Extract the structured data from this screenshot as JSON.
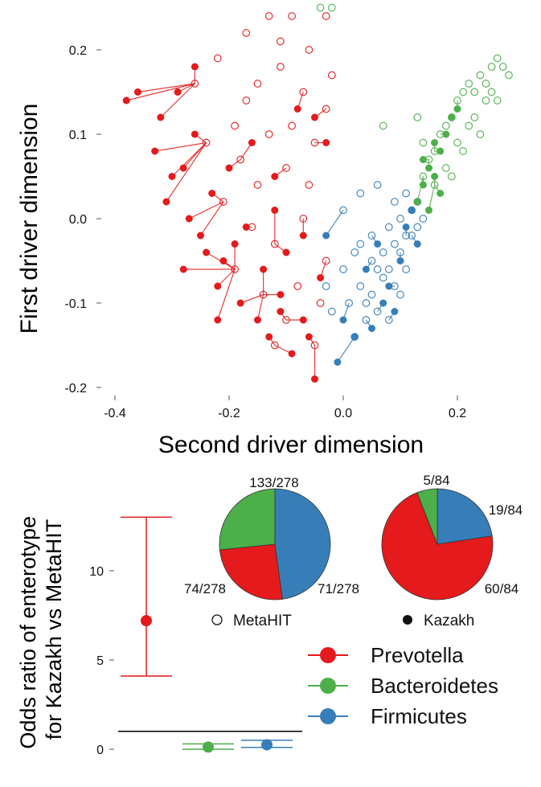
{
  "colors": {
    "prevotella": "#e41a1c",
    "bacteroidetes": "#4daf4a",
    "firmicutes": "#377eb8",
    "reference_line": "#000000"
  },
  "chart_data": [
    {
      "type": "scatter",
      "xlabel": "Second driver dimension",
      "ylabel": "First driver dimension",
      "xlim": [
        -0.4,
        0.3
      ],
      "ylim": [
        -0.2,
        0.25
      ],
      "x_ticks": [
        "-0.4",
        "-0.2",
        "0.0",
        "0.2"
      ],
      "y_ticks": [
        "0.2",
        "0.1",
        "0.0",
        "-0.1",
        "-0.2"
      ],
      "grid": false,
      "marker_styles": {
        "open_circle": "MetaHIT",
        "filled_circle": "Kazakh"
      },
      "series": [
        {
          "group": "Prevotella",
          "color": "#e41a1c",
          "kazakh_points": [
            [
              -0.38,
              0.14
            ],
            [
              -0.36,
              0.15
            ],
            [
              -0.32,
              0.12
            ],
            [
              -0.29,
              0.15
            ],
            [
              -0.26,
              0.18
            ],
            [
              -0.33,
              0.08
            ],
            [
              -0.3,
              0.05
            ],
            [
              -0.28,
              0.06
            ],
            [
              -0.31,
              0.02
            ],
            [
              -0.27,
              0.0
            ],
            [
              -0.25,
              -0.02
            ],
            [
              -0.23,
              0.03
            ],
            [
              -0.21,
              -0.05
            ],
            [
              -0.19,
              -0.03
            ],
            [
              -0.22,
              -0.08
            ],
            [
              -0.18,
              -0.1
            ],
            [
              -0.15,
              -0.12
            ],
            [
              -0.13,
              -0.14
            ],
            [
              -0.11,
              -0.09
            ],
            [
              -0.09,
              -0.16
            ],
            [
              -0.07,
              -0.12
            ],
            [
              -0.05,
              -0.19
            ],
            [
              -0.08,
              0.13
            ],
            [
              -0.05,
              0.12
            ],
            [
              -0.12,
              0.01
            ],
            [
              -0.1,
              -0.04
            ],
            [
              -0.14,
              -0.06
            ],
            [
              -0.24,
              -0.04
            ],
            [
              -0.2,
              0.06
            ],
            [
              -0.16,
              0.09
            ],
            [
              -0.07,
              -0.02
            ],
            [
              -0.04,
              -0.07
            ],
            [
              -0.06,
              -0.14
            ],
            [
              -0.26,
              0.1
            ],
            [
              -0.17,
              -0.01
            ],
            [
              -0.11,
              -0.11
            ],
            [
              -0.28,
              -0.06
            ],
            [
              -0.22,
              -0.12
            ],
            [
              -0.03,
              0.09
            ],
            [
              -0.12,
              0.05
            ]
          ],
          "metahit_points": [
            [
              -0.17,
              0.22
            ],
            [
              -0.13,
              0.24
            ],
            [
              -0.09,
              0.24
            ],
            [
              -0.03,
              0.24
            ],
            [
              -0.06,
              0.2
            ],
            [
              -0.15,
              0.16
            ],
            [
              -0.11,
              0.18
            ],
            [
              -0.07,
              0.15
            ],
            [
              -0.03,
              0.13
            ],
            [
              -0.22,
              0.19
            ],
            [
              -0.26,
              0.16
            ],
            [
              -0.19,
              0.11
            ],
            [
              -0.13,
              0.1
            ],
            [
              -0.09,
              0.11
            ],
            [
              -0.05,
              0.09
            ],
            [
              -0.24,
              0.09
            ],
            [
              -0.18,
              0.07
            ],
            [
              -0.15,
              0.04
            ],
            [
              -0.1,
              0.06
            ],
            [
              -0.06,
              0.04
            ],
            [
              -0.21,
              0.02
            ],
            [
              -0.16,
              -0.01
            ],
            [
              -0.12,
              -0.03
            ],
            [
              -0.07,
              0.0
            ],
            [
              -0.03,
              -0.05
            ],
            [
              -0.19,
              -0.06
            ],
            [
              -0.14,
              -0.09
            ],
            [
              -0.1,
              -0.12
            ],
            [
              -0.05,
              -0.15
            ],
            [
              -0.08,
              -0.08
            ],
            [
              -0.12,
              -0.15
            ],
            [
              -0.04,
              -0.1
            ],
            [
              -0.17,
              0.14
            ],
            [
              -0.11,
              0.21
            ],
            [
              -0.02,
              0.17
            ]
          ]
        },
        {
          "group": "Bacteroidetes",
          "color": "#4daf4a",
          "kazakh_points": [
            [
              0.13,
              0.02
            ],
            [
              0.14,
              0.04
            ],
            [
              0.15,
              0.06
            ],
            [
              0.16,
              0.05
            ],
            [
              0.17,
              0.08
            ],
            [
              0.18,
              0.1
            ],
            [
              0.19,
              0.12
            ],
            [
              0.2,
              0.13
            ],
            [
              0.17,
              0.03
            ],
            [
              0.15,
              0.01
            ],
            [
              0.16,
              0.09
            ],
            [
              0.14,
              0.07
            ]
          ],
          "metahit_points": [
            [
              0.14,
              0.05
            ],
            [
              0.15,
              0.07
            ],
            [
              0.16,
              0.08
            ],
            [
              0.17,
              0.1
            ],
            [
              0.18,
              0.11
            ],
            [
              0.19,
              0.12
            ],
            [
              0.2,
              0.14
            ],
            [
              0.21,
              0.15
            ],
            [
              0.22,
              0.16
            ],
            [
              0.23,
              0.15
            ],
            [
              0.24,
              0.17
            ],
            [
              0.25,
              0.16
            ],
            [
              0.26,
              0.18
            ],
            [
              0.27,
              0.19
            ],
            [
              0.28,
              0.18
            ],
            [
              0.29,
              0.17
            ],
            [
              0.2,
              0.09
            ],
            [
              0.22,
              0.11
            ],
            [
              0.18,
              0.06
            ],
            [
              0.16,
              0.04
            ],
            [
              0.21,
              0.08
            ],
            [
              0.23,
              0.12
            ],
            [
              0.25,
              0.14
            ],
            [
              0.19,
              0.05
            ],
            [
              0.24,
              0.1
            ],
            [
              0.27,
              0.14
            ],
            [
              0.26,
              0.15
            ],
            [
              0.14,
              0.09
            ],
            [
              0.13,
              0.12
            ],
            [
              0.07,
              0.11
            ],
            [
              -0.04,
              0.25
            ],
            [
              -0.02,
              0.25
            ]
          ]
        },
        {
          "group": "Firmicutes",
          "color": "#377eb8",
          "kazakh_points": [
            [
              -0.03,
              -0.02
            ],
            [
              0.0,
              -0.12
            ],
            [
              -0.01,
              -0.17
            ],
            [
              0.02,
              -0.14
            ],
            [
              0.04,
              -0.06
            ],
            [
              0.06,
              -0.03
            ],
            [
              0.08,
              -0.08
            ],
            [
              0.1,
              -0.05
            ],
            [
              0.11,
              -0.01
            ],
            [
              0.12,
              0.01
            ],
            [
              0.13,
              -0.03
            ],
            [
              0.07,
              -0.1
            ],
            [
              0.05,
              -0.13
            ],
            [
              0.09,
              -0.11
            ]
          ],
          "metahit_points": [
            [
              -0.03,
              -0.08
            ],
            [
              -0.02,
              -0.11
            ],
            [
              0.0,
              -0.06
            ],
            [
              0.01,
              -0.1
            ],
            [
              0.02,
              -0.04
            ],
            [
              0.03,
              -0.08
            ],
            [
              0.04,
              -0.12
            ],
            [
              0.05,
              -0.02
            ],
            [
              0.06,
              -0.06
            ],
            [
              0.07,
              -0.04
            ],
            [
              0.08,
              -0.01
            ],
            [
              0.09,
              -0.03
            ],
            [
              0.1,
              0.0
            ],
            [
              0.11,
              -0.02
            ],
            [
              0.12,
              0.01
            ],
            [
              0.13,
              0.02
            ],
            [
              0.05,
              -0.09
            ],
            [
              0.06,
              -0.11
            ],
            [
              0.08,
              -0.06
            ],
            [
              0.09,
              -0.08
            ],
            [
              0.1,
              -0.04
            ],
            [
              0.11,
              -0.06
            ],
            [
              0.07,
              -0.07
            ],
            [
              0.03,
              -0.03
            ],
            [
              0.02,
              -0.14
            ],
            [
              0.04,
              -0.1
            ],
            [
              0.12,
              -0.02
            ],
            [
              0.13,
              -0.01
            ],
            [
              0.09,
              0.02
            ],
            [
              0.06,
              0.04
            ],
            [
              0.03,
              0.03
            ],
            [
              0.0,
              0.01
            ],
            [
              0.11,
              0.03
            ],
            [
              0.14,
              0.0
            ],
            [
              0.08,
              -0.12
            ],
            [
              0.05,
              -0.05
            ],
            [
              0.1,
              -0.09
            ]
          ]
        }
      ]
    },
    {
      "type": "errorbar",
      "ylabel_lines": [
        "Odds ratio of enterotype",
        "for Kazakh vs MetaHIT"
      ],
      "ylim": [
        0,
        14
      ],
      "y_ticks": [
        "10",
        "5",
        "0"
      ],
      "reference_line": 1,
      "series": [
        {
          "name": "Prevotella",
          "color": "#e41a1c",
          "odds_ratio": 7.2,
          "ci_low": 4.1,
          "ci_high": 13.0
        },
        {
          "name": "Bacteroidetes",
          "color": "#4daf4a",
          "odds_ratio": 0.12,
          "ci_low": 0.0,
          "ci_high": 0.3
        },
        {
          "name": "Firmicutes",
          "color": "#377eb8",
          "odds_ratio": 0.25,
          "ci_low": 0.1,
          "ci_high": 0.5
        }
      ],
      "legend": {
        "placement": "right",
        "items": [
          "Prevotella",
          "Bacteroidetes",
          "Firmicutes"
        ]
      }
    },
    {
      "type": "pie",
      "name": "MetaHIT",
      "marker": "open_circle",
      "slices": [
        {
          "group": "Firmicutes",
          "value": 133,
          "label": "133/278",
          "color": "#377eb8"
        },
        {
          "group": "Prevotella",
          "value": 71,
          "label": "71/278",
          "color": "#e41a1c"
        },
        {
          "group": "Bacteroidetes",
          "value": 74,
          "label": "74/278",
          "color": "#4daf4a"
        }
      ]
    },
    {
      "type": "pie",
      "name": "Kazakh",
      "marker": "filled_circle",
      "slices": [
        {
          "group": "Firmicutes",
          "value": 19,
          "label": "19/84",
          "color": "#377eb8"
        },
        {
          "group": "Prevotella",
          "value": 60,
          "label": "60/84",
          "color": "#e41a1c"
        },
        {
          "group": "Bacteroidetes",
          "value": 5,
          "label": "5/84",
          "color": "#4daf4a"
        }
      ]
    }
  ]
}
